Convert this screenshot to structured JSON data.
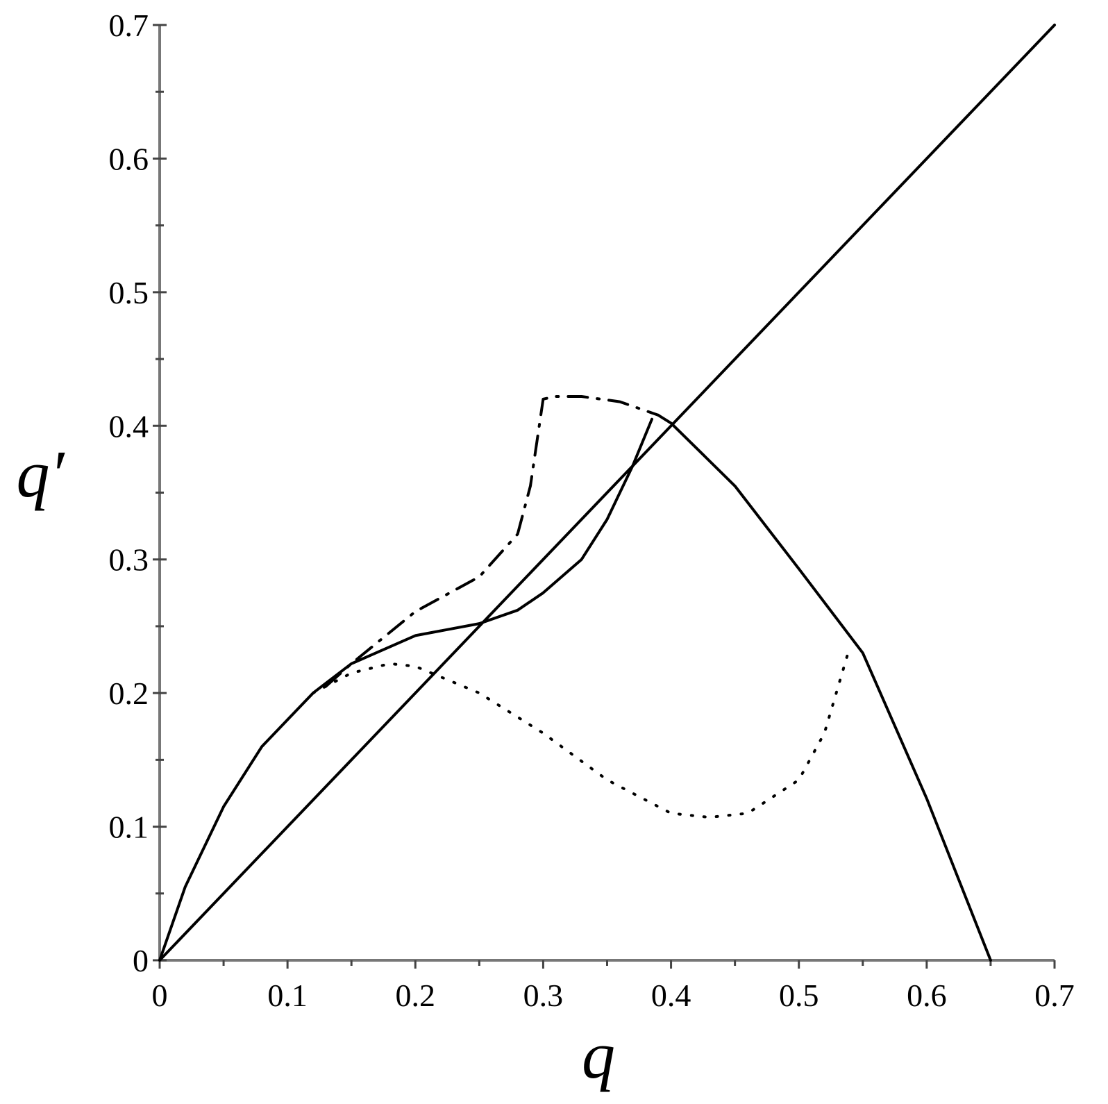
{
  "chart_data": {
    "type": "line",
    "x_label": "q",
    "y_label": "q′",
    "xlim": [
      0,
      0.7
    ],
    "ylim": [
      0,
      0.7
    ],
    "xticks": [
      0,
      0.1,
      0.2,
      0.3,
      0.4,
      0.5,
      0.6,
      0.7
    ],
    "yticks": [
      0,
      0.1,
      0.2,
      0.3,
      0.4,
      0.5,
      0.6,
      0.7
    ],
    "minor_xticks": [
      0.05,
      0.15,
      0.25,
      0.35,
      0.45,
      0.55,
      0.65
    ],
    "minor_yticks": [
      0.05,
      0.15,
      0.25,
      0.35,
      0.45,
      0.55,
      0.65
    ],
    "grid": false,
    "series": [
      {
        "color": "#000000",
        "style": "solid",
        "x": [
          0,
          0.7
        ],
        "values": [
          0,
          0.7
        ]
      },
      {
        "color": "#000000",
        "style": "solid",
        "x": [
          0,
          0.02,
          0.05,
          0.08,
          0.1,
          0.12,
          0.15,
          0.2,
          0.25,
          0.28,
          0.3,
          0.33,
          0.35,
          0.37,
          0.385
        ],
        "values": [
          0,
          0.055,
          0.115,
          0.16,
          0.18,
          0.2,
          0.222,
          0.243,
          0.252,
          0.262,
          0.275,
          0.3,
          0.33,
          0.37,
          0.405
        ]
      },
      {
        "color": "#000000",
        "style": "dashdot",
        "x": [
          0.13,
          0.15,
          0.2,
          0.25,
          0.28,
          0.29,
          0.3,
          0.31,
          0.33,
          0.36,
          0.39
        ],
        "values": [
          0.205,
          0.222,
          0.261,
          0.287,
          0.319,
          0.355,
          0.42,
          0.422,
          0.422,
          0.418,
          0.408
        ]
      },
      {
        "color": "#000000",
        "style": "solid",
        "x": [
          0.39,
          0.4,
          0.45,
          0.5,
          0.55,
          0.6,
          0.65
        ],
        "values": [
          0.408,
          0.402,
          0.355,
          0.293,
          0.23,
          0.121,
          0
        ]
      },
      {
        "color": "#000000",
        "style": "dotted",
        "x": [
          0.12,
          0.15,
          0.18,
          0.2,
          0.25,
          0.3,
          0.35,
          0.4,
          0.43,
          0.46,
          0.5,
          0.52,
          0.54
        ],
        "values": [
          0.2,
          0.215,
          0.222,
          0.22,
          0.2,
          0.17,
          0.135,
          0.11,
          0.107,
          0.11,
          0.135,
          0.17,
          0.235
        ]
      }
    ]
  }
}
